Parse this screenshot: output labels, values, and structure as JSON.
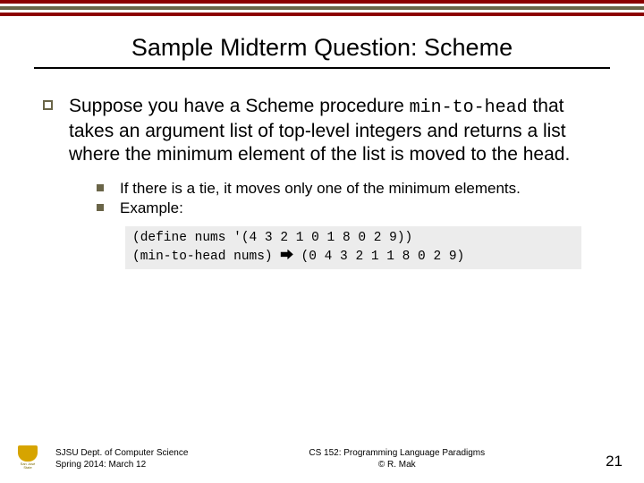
{
  "stripes": {
    "color1": "#8c0000",
    "color2": "#6a6548"
  },
  "title": "Sample Midterm Question: Scheme",
  "main": {
    "text_pre": "Suppose you have a Scheme procedure ",
    "code": "min-to-head",
    "text_post": " that takes an argument list of top-level integers and returns a list where the minimum element of the list is moved to the head."
  },
  "sub": {
    "item1": "If there is a tie, it moves only one of the minimum elements.",
    "item2": "Example:"
  },
  "code_block": {
    "line1": "(define nums '(4 3 2 1 0 1 8 0 2 9))",
    "line2a": "(min-to-head nums) ",
    "arrow": "⮕",
    "line2b": " (0 4 3 2 1 1 8 0 2 9)"
  },
  "footer": {
    "dept1": "SJSU Dept. of Computer Science",
    "dept2": "Spring 2014: March 12",
    "course1": "CS 152: Programming Language Paradigms",
    "course2": "© R. Mak",
    "page": "21",
    "logo_label": "San José State"
  },
  "colors": {
    "code_bg": "#ececec",
    "bullet": "#6a6548"
  }
}
